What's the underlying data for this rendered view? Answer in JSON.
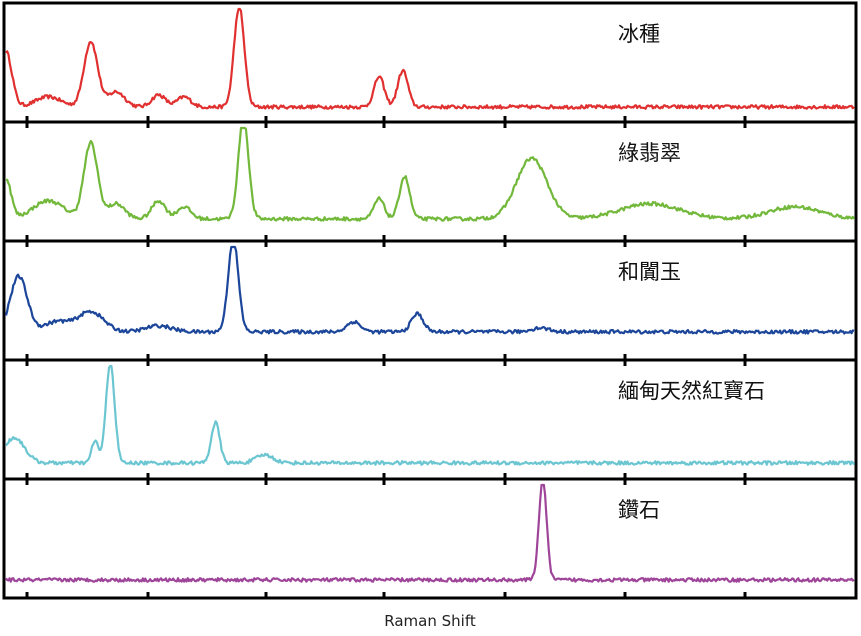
{
  "chart_data": {
    "type": "line",
    "layout": "stacked-panels",
    "xlabel": "Raman Shift",
    "ylabel": "",
    "xlim": [
      0,
      100
    ],
    "x_tick_labels": [],
    "y_tick_labels": [],
    "grid": false,
    "legend": "none",
    "series": [
      {
        "name": "冰種",
        "color": "#e03030",
        "baseline": 0.05,
        "peaks": [
          [
            0.0,
            0.55,
            0.7
          ],
          [
            5.0,
            0.1,
            1.5
          ],
          [
            10.0,
            0.65,
            0.8
          ],
          [
            13.0,
            0.15,
            1.0
          ],
          [
            18.0,
            0.12,
            0.8
          ],
          [
            21.0,
            0.1,
            0.8
          ],
          [
            27.5,
            1.0,
            0.6
          ],
          [
            44.0,
            0.3,
            0.6
          ],
          [
            46.8,
            0.36,
            0.6
          ]
        ]
      },
      {
        "name": "綠翡翠",
        "color": "#72b83a",
        "baseline": 0.12,
        "peaks": [
          [
            0.0,
            0.4,
            0.6
          ],
          [
            5.0,
            0.18,
            1.8
          ],
          [
            10.0,
            0.75,
            0.8
          ],
          [
            13.0,
            0.15,
            1.0
          ],
          [
            18.0,
            0.18,
            0.8
          ],
          [
            21.0,
            0.12,
            0.8
          ],
          [
            28.0,
            1.0,
            0.6
          ],
          [
            44.0,
            0.2,
            0.6
          ],
          [
            47.0,
            0.42,
            0.6
          ],
          [
            62.0,
            0.6,
            1.8
          ],
          [
            76.0,
            0.15,
            3.5
          ],
          [
            93.0,
            0.12,
            3.0
          ]
        ]
      },
      {
        "name": "和闐玉",
        "color": "#1c469a",
        "baseline": 0.18,
        "peaks": [
          [
            1.5,
            0.55,
            1.0
          ],
          [
            6.0,
            0.1,
            1.5
          ],
          [
            10.0,
            0.2,
            1.5
          ],
          [
            18.0,
            0.06,
            1.5
          ],
          [
            26.8,
            0.92,
            0.6
          ],
          [
            41.0,
            0.1,
            0.8
          ],
          [
            48.5,
            0.18,
            0.7
          ],
          [
            63.0,
            0.04,
            1.0
          ]
        ]
      },
      {
        "name": "緬甸天然紅寶石",
        "color": "#6bc6d1",
        "baseline": 0.06,
        "peaks": [
          [
            1.0,
            0.25,
            1.2
          ],
          [
            10.5,
            0.22,
            0.4
          ],
          [
            12.3,
            1.0,
            0.5
          ],
          [
            24.7,
            0.4,
            0.5
          ],
          [
            30.5,
            0.08,
            1.0
          ]
        ]
      },
      {
        "name": "鑽石",
        "color": "#9e4599",
        "baseline": 0.08,
        "peaks": [
          [
            63.3,
            1.0,
            0.45
          ]
        ]
      }
    ]
  }
}
